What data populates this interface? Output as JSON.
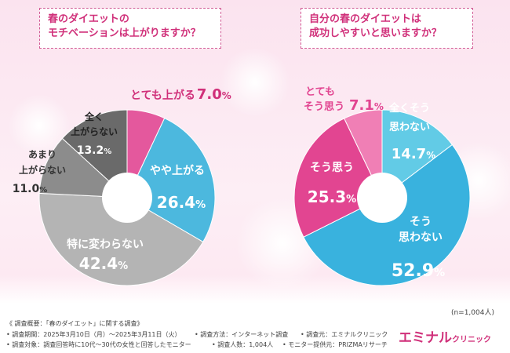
{
  "charts": [
    {
      "title": [
        "春のダイエットの",
        "モチベーションは上がりますか？"
      ],
      "chart_data": {
        "type": "pie",
        "title": "春のダイエットのモチベーションは上がりますか？",
        "unit": "%",
        "slices": [
          {
            "label": "とても上がる",
            "value": 7.0,
            "color": "#e4589d"
          },
          {
            "label": "やや上がる",
            "value": 26.4,
            "color": "#4cb8de"
          },
          {
            "label": "特に変わらない",
            "value": 42.4,
            "color": "#b4b4b4"
          },
          {
            "label": "あまり上がらない",
            "value": 11.0,
            "color": "#8c8c8c"
          },
          {
            "label": "全く上がらない",
            "value": 13.2,
            "color": "#6a6a6a"
          }
        ]
      }
    },
    {
      "title": [
        "自分の春のダイエットは",
        "成功しやすいと思いますか？"
      ],
      "chart_data": {
        "type": "pie",
        "title": "自分の春のダイエットは成功しやすいと思いますか？",
        "unit": "%",
        "slices": [
          {
            "label": "全くそう思わない",
            "value": 14.7,
            "color": "#62cbe6"
          },
          {
            "label": "そう思わない",
            "value": 52.9,
            "color": "#39b2de"
          },
          {
            "label": "そう思う",
            "value": 25.3,
            "color": "#e24591"
          },
          {
            "label": "とてもそう思う",
            "value": 7.1,
            "color": "#f07fb5"
          }
        ]
      }
    }
  ],
  "labels": {
    "c1": {
      "s0": {
        "l1": "とても上がる",
        "v": "7.0",
        "u": "%"
      },
      "s1": {
        "l1": "やや上がる",
        "v": "26.4",
        "u": "%"
      },
      "s2": {
        "l1": "特に変わらない",
        "v": "42.4",
        "u": "%"
      },
      "s3": {
        "l1": "あまり",
        "l2": "上がらない",
        "v": "11.0",
        "u": "%"
      },
      "s4": {
        "l1": "全く",
        "l2": "上がらない",
        "v": "13.2",
        "u": "%"
      }
    },
    "c2": {
      "s0": {
        "l1": "全くそう",
        "l2": "思わない",
        "v": "14.7",
        "u": "%"
      },
      "s1": {
        "l1": "そう",
        "l2": "思わない",
        "v": "52.9",
        "u": "%"
      },
      "s2": {
        "l1": "そう思う",
        "v": "25.3",
        "u": "%"
      },
      "s3": {
        "l1": "とても",
        "l2": "そう思う",
        "v": "7.1",
        "u": "%"
      }
    }
  },
  "sample_note": "(n=1,004人)",
  "footer": {
    "line1": "《 調査概要：「春のダイエット」に関する調査》",
    "line2a": "• 調査期間：2025年3月10日（月）～2025年3月11日（火）",
    "line2b": "• 調査方法：インターネット調査",
    "line2c": "• 調査元：エミナルクリニック",
    "line3a": "• 調査対象：調査回答時に10代～30代の女性と回答したモニター",
    "line3b": "• 調査人数：1,004人",
    "line3c": "• モニター提供元：PRIZMAリサーチ"
  },
  "logo": {
    "main": "エミナル",
    "sub": "クリニック"
  }
}
